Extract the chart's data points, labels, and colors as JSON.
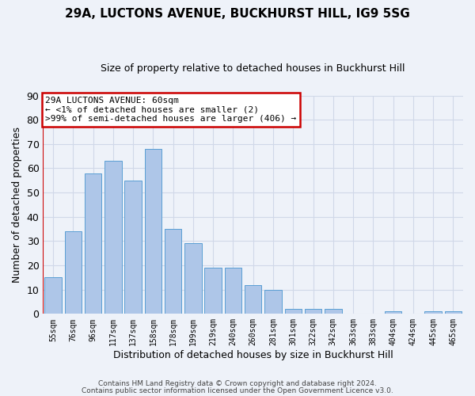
{
  "title": "29A, LUCTONS AVENUE, BUCKHURST HILL, IG9 5SG",
  "subtitle": "Size of property relative to detached houses in Buckhurst Hill",
  "xlabel": "Distribution of detached houses by size in Buckhurst Hill",
  "ylabel": "Number of detached properties",
  "bar_labels": [
    "55sqm",
    "76sqm",
    "96sqm",
    "117sqm",
    "137sqm",
    "158sqm",
    "178sqm",
    "199sqm",
    "219sqm",
    "240sqm",
    "260sqm",
    "281sqm",
    "301sqm",
    "322sqm",
    "342sqm",
    "363sqm",
    "383sqm",
    "404sqm",
    "424sqm",
    "445sqm",
    "465sqm"
  ],
  "bar_heights": [
    15,
    34,
    58,
    63,
    55,
    68,
    35,
    29,
    19,
    19,
    12,
    10,
    2,
    2,
    2,
    0,
    0,
    1,
    0,
    1,
    1
  ],
  "bar_color": "#aec6e8",
  "bar_edge_color": "#5a9fd4",
  "ylim": [
    0,
    90
  ],
  "yticks": [
    0,
    10,
    20,
    30,
    40,
    50,
    60,
    70,
    80,
    90
  ],
  "grid_color": "#d0d8e8",
  "annotation_title": "29A LUCTONS AVENUE: 60sqm",
  "annotation_line1": "← <1% of detached houses are smaller (2)",
  "annotation_line2": ">99% of semi-detached houses are larger (406) →",
  "annotation_box_color": "#ffffff",
  "annotation_box_edge": "#cc0000",
  "footer1": "Contains HM Land Registry data © Crown copyright and database right 2024.",
  "footer2": "Contains public sector information licensed under the Open Government Licence v3.0.",
  "bg_color": "#eef2f9"
}
